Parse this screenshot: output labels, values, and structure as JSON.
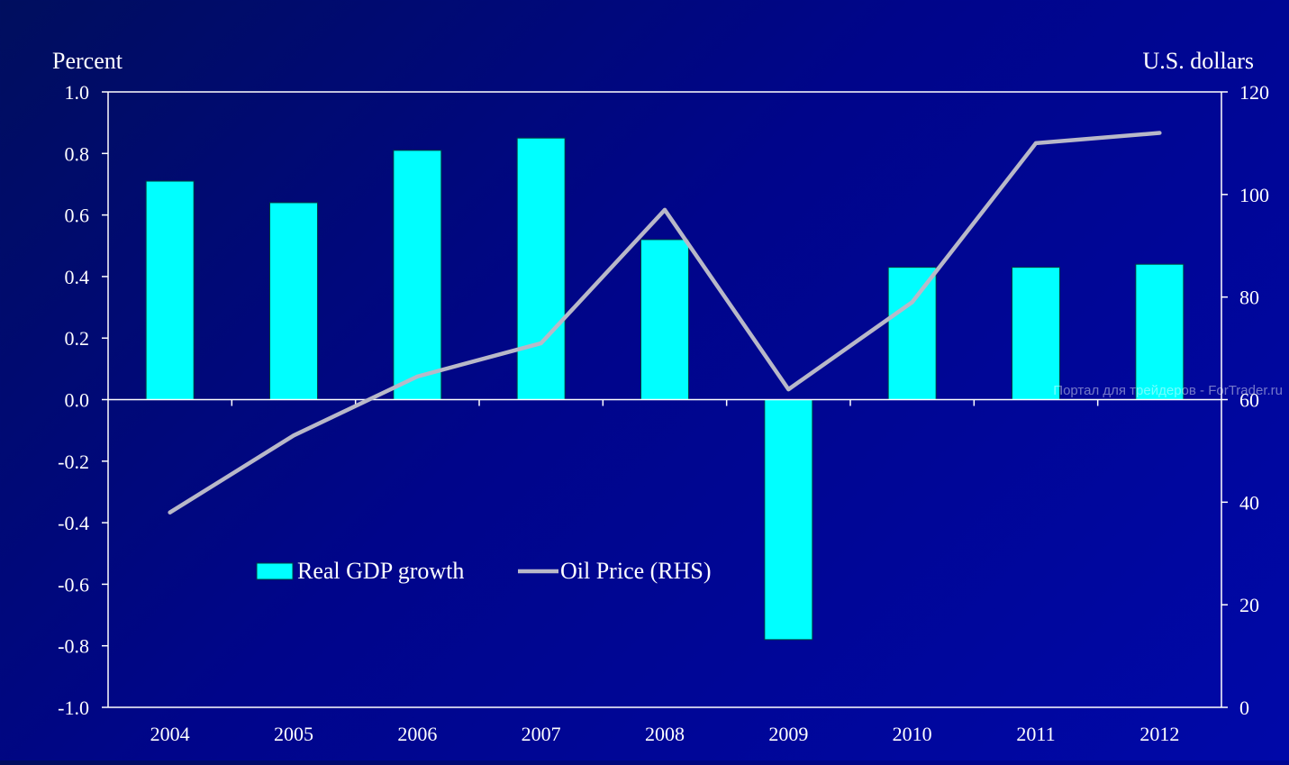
{
  "chart_data": {
    "type": "bar",
    "title": "",
    "ylabel_left": "Percent",
    "ylabel_right": "U.S. dollars",
    "categories": [
      "2004",
      "2005",
      "2006",
      "2007",
      "2008",
      "2009",
      "2010",
      "2011",
      "2012"
    ],
    "ylim_left": [
      -1.0,
      1.0
    ],
    "ylim_right": [
      0,
      120
    ],
    "yticks_left": [
      "1.0",
      "0.8",
      "0.6",
      "0.4",
      "0.2",
      "0.0",
      "-0.2",
      "-0.4",
      "-0.6",
      "-0.8",
      "-1.0"
    ],
    "yticks_right": [
      "120",
      "100",
      "80",
      "60",
      "40",
      "20",
      "0"
    ],
    "series": [
      {
        "name": "Real GDP growth",
        "type": "bar",
        "axis": "left",
        "color": "#00ffff",
        "values": [
          0.71,
          0.64,
          0.81,
          0.85,
          0.52,
          -0.78,
          0.43,
          0.43,
          0.44
        ]
      },
      {
        "name": "Oil Price (RHS)",
        "type": "line",
        "axis": "right",
        "color": "#b8b8c8",
        "values": [
          38,
          53,
          64.5,
          71,
          97,
          62,
          79,
          110,
          112
        ]
      }
    ],
    "legend_position": "lower-left",
    "grid": false
  },
  "watermark": "Портал для трейдеров - ForTrader.ru"
}
